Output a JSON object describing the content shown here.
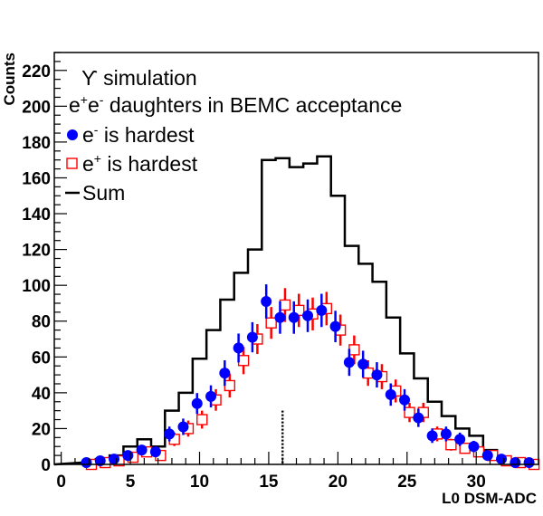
{
  "chart_data": {
    "type": "histogram",
    "xlabel": "L0 DSM-ADC",
    "ylabel": "Counts",
    "xlim": [
      -0.5,
      34.5
    ],
    "ylim": [
      0,
      230
    ],
    "x_ticks": [
      0,
      5,
      10,
      15,
      20,
      25,
      30
    ],
    "y_ticks": [
      0,
      20,
      40,
      60,
      80,
      100,
      120,
      140,
      160,
      180,
      200,
      220
    ],
    "annotations": [
      "ϒ simulation",
      "e⁺e⁻ daughters in BEMC acceptance"
    ],
    "threshold_marker": {
      "x": 16,
      "y_top": 30,
      "style": "dotted"
    },
    "series": [
      {
        "name": "Sum",
        "kind": "step",
        "color": "#000000",
        "x": [
          2,
          3,
          4,
          5,
          6,
          7,
          8,
          9,
          10,
          11,
          12,
          13,
          14,
          15,
          16,
          17,
          18,
          19,
          20,
          21,
          22,
          23,
          24,
          25,
          26,
          27,
          28,
          29,
          30,
          31,
          32,
          33,
          34
        ],
        "values": [
          1,
          3,
          5,
          10,
          14,
          10,
          30,
          40,
          59,
          75,
          92,
          107,
          120,
          170,
          171,
          166,
          168,
          172,
          150,
          122,
          112,
          102,
          82,
          62,
          48,
          35,
          27,
          20,
          16,
          8,
          3,
          2,
          0
        ]
      },
      {
        "name": "e- is hardest",
        "kind": "points",
        "marker": "filled-circle",
        "color": "#0000ff",
        "x": [
          2,
          3,
          4,
          5,
          6,
          7,
          8,
          9,
          10,
          11,
          12,
          13,
          14,
          15,
          16,
          17,
          18,
          19,
          20,
          21,
          22,
          23,
          24,
          25,
          26,
          27,
          28,
          29,
          30,
          31,
          32,
          33,
          34
        ],
        "values": [
          1,
          2,
          3,
          5,
          8,
          7,
          17,
          21,
          34,
          38,
          51,
          65,
          71,
          91,
          82,
          82,
          83,
          86,
          77,
          57,
          56,
          50,
          39,
          36,
          26,
          16,
          17,
          14,
          10,
          5,
          3,
          1,
          1
        ]
      },
      {
        "name": "e+ is hardest",
        "kind": "points",
        "marker": "open-square",
        "color": "#ff0000",
        "x": [
          2,
          3,
          4,
          5,
          6,
          7,
          8,
          9,
          10,
          11,
          12,
          13,
          14,
          15,
          16,
          17,
          18,
          19,
          20,
          21,
          22,
          23,
          24,
          25,
          26,
          27,
          28,
          29,
          30,
          31,
          32,
          33,
          34
        ],
        "values": [
          0,
          1,
          2,
          4,
          7,
          5,
          14,
          20,
          25,
          36,
          44,
          58,
          70,
          79,
          89,
          86,
          84,
          87,
          75,
          64,
          51,
          49,
          41,
          29,
          29,
          17,
          11,
          9,
          7,
          5,
          2,
          1,
          0
        ]
      }
    ]
  },
  "legend": {
    "title_line1": "ϒ simulation",
    "title_line2_a": "e",
    "title_line2_sup1": "+",
    "title_line2_b": "e",
    "title_line2_sup2": "-",
    "title_line2_c": " daughters in BEMC acceptance",
    "entry_electron_a": "e",
    "entry_electron_sup": "-",
    "entry_electron_b": " is hardest",
    "entry_positron_a": "e",
    "entry_positron_sup": "+",
    "entry_positron_b": " is hardest",
    "entry_sum": "Sum"
  }
}
